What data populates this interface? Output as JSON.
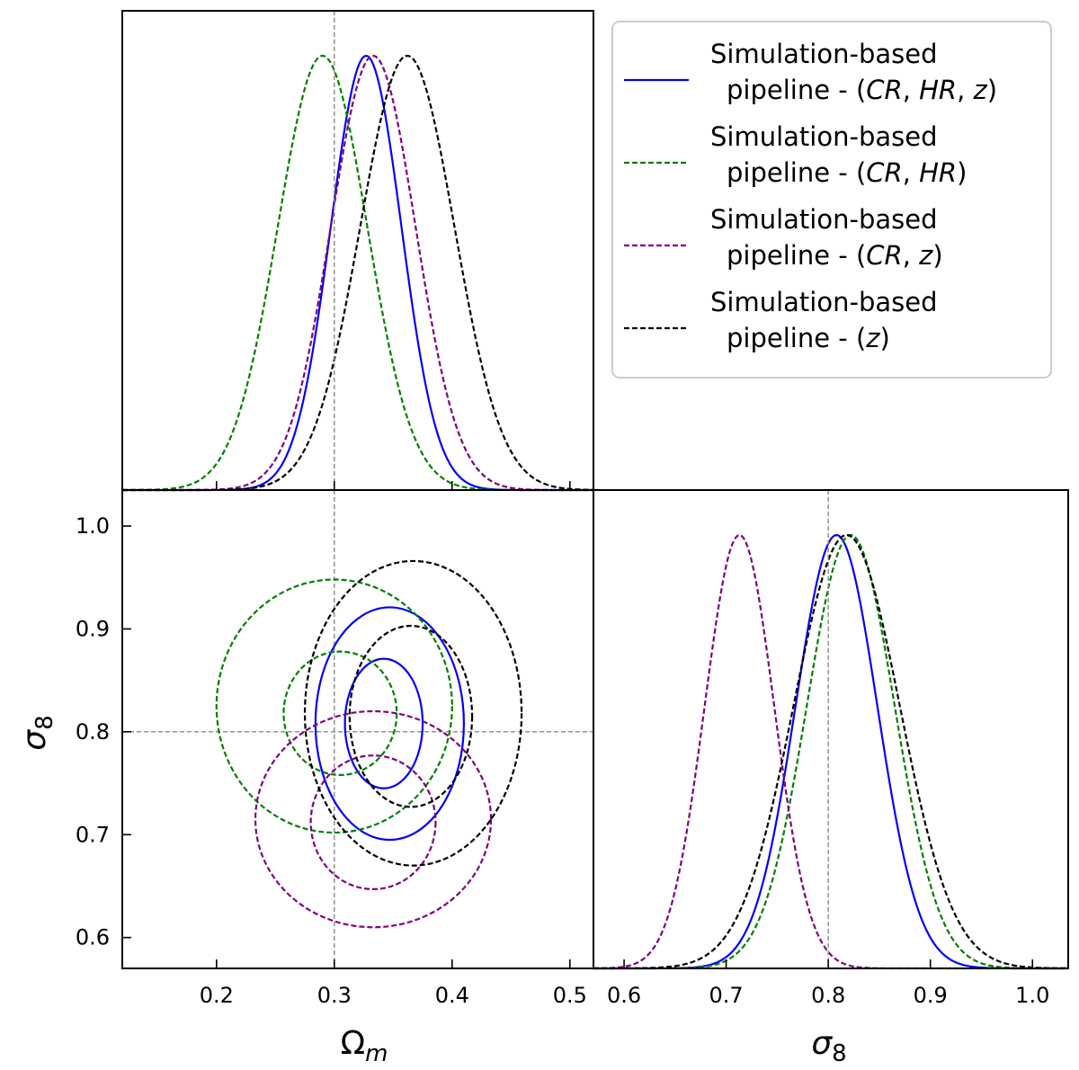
{
  "chart_data": {
    "type": "corner",
    "truth": {
      "Omega_m": 0.3,
      "sigma_8": 0.8
    },
    "legend": {
      "placement": "top-right",
      "entries": [
        {
          "line1": "Simulation-based",
          "line2": "pipeline - (",
          "vars": [
            "CR",
            "HR",
            "z"
          ],
          "color": "#0000ff",
          "dash": "solid"
        },
        {
          "line1": "Simulation-based",
          "line2": "pipeline - (",
          "vars": [
            "CR",
            "HR"
          ],
          "color": "#008000",
          "dash": "dashed"
        },
        {
          "line1": "Simulation-based",
          "line2": "pipeline - (",
          "vars": [
            "CR",
            "z"
          ],
          "color": "#800080",
          "dash": "dashed"
        },
        {
          "line1": "Simulation-based",
          "line2": "pipeline - (",
          "vars": [
            "z"
          ],
          "color": "#000000",
          "dash": "dashed"
        }
      ]
    },
    "panels": [
      {
        "id": "omega_m_marginal",
        "type": "line",
        "xlim": [
          0.12,
          0.52
        ],
        "xticks": [
          0.2,
          0.3,
          0.4,
          0.5
        ],
        "yticks_labeled": false,
        "series": [
          {
            "name": "(CR, HR, z)",
            "mean": 0.327,
            "sigma": 0.03
          },
          {
            "name": "(CR, HR)",
            "mean": 0.29,
            "sigma": 0.038
          },
          {
            "name": "(CR, z)",
            "mean": 0.333,
            "sigma": 0.036
          },
          {
            "name": "(z)",
            "mean": 0.362,
            "sigma": 0.04
          }
        ]
      },
      {
        "id": "omega_m_sigma_8_joint",
        "type": "contour",
        "xlim": [
          0.12,
          0.52
        ],
        "ylim": [
          0.57,
          1.035
        ],
        "xticks": [
          0.2,
          0.3,
          0.4,
          0.5
        ],
        "yticks": [
          0.6,
          0.7,
          0.8,
          0.9,
          1.0
        ],
        "xlabel": "Ω",
        "xlabel_sub": "m",
        "ylabel": "σ",
        "ylabel_sub": "8",
        "series": [
          {
            "name": "(CR, HR, z)",
            "contours": [
              {
                "cx": 0.347,
                "cy": 0.808,
                "rx": 0.063,
                "ry": 0.113
              },
              {
                "cx": 0.342,
                "cy": 0.808,
                "rx": 0.033,
                "ry": 0.063
              }
            ]
          },
          {
            "name": "(CR, HR)",
            "contours": [
              {
                "cx": 0.3,
                "cy": 0.825,
                "rx": 0.1,
                "ry": 0.123
              },
              {
                "cx": 0.305,
                "cy": 0.818,
                "rx": 0.048,
                "ry": 0.06
              }
            ]
          },
          {
            "name": "(CR, z)",
            "contours": [
              {
                "cx": 0.333,
                "cy": 0.715,
                "rx": 0.1,
                "ry": 0.105
              },
              {
                "cx": 0.333,
                "cy": 0.712,
                "rx": 0.053,
                "ry": 0.065
              }
            ]
          },
          {
            "name": "(z)",
            "contours": [
              {
                "cx": 0.367,
                "cy": 0.818,
                "rx": 0.092,
                "ry": 0.148
              },
              {
                "cx": 0.365,
                "cy": 0.815,
                "rx": 0.052,
                "ry": 0.088
              }
            ]
          }
        ]
      },
      {
        "id": "sigma_8_marginal",
        "type": "line",
        "xlim": [
          0.57,
          1.035
        ],
        "xticks": [
          0.6,
          0.7,
          0.8,
          0.9,
          1.0
        ],
        "xlabel": "σ",
        "xlabel_sub": "8",
        "yticks_labeled": false,
        "series": [
          {
            "name": "(CR, HR, z)",
            "mean": 0.808,
            "sigma": 0.04
          },
          {
            "name": "(CR, HR)",
            "mean": 0.822,
            "sigma": 0.043
          },
          {
            "name": "(CR, z)",
            "mean": 0.713,
            "sigma": 0.034
          },
          {
            "name": "(z)",
            "mean": 0.818,
            "sigma": 0.052
          }
        ]
      }
    ]
  }
}
